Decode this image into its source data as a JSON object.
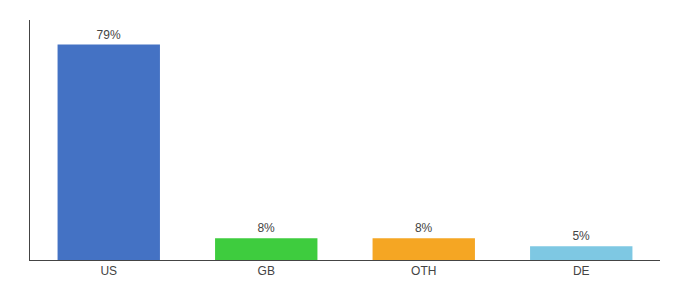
{
  "chart_data": {
    "type": "bar",
    "categories": [
      "US",
      "GB",
      "OTH",
      "DE"
    ],
    "values": [
      79,
      8,
      8,
      5
    ],
    "value_labels": [
      "79%",
      "8%",
      "8%",
      "5%"
    ],
    "colors": [
      "#4472c4",
      "#3ecc3e",
      "#f5a623",
      "#7ec8e3"
    ],
    "ylim": [
      0,
      88
    ],
    "grid": false,
    "data_labels": true,
    "tick_labels": "x"
  }
}
